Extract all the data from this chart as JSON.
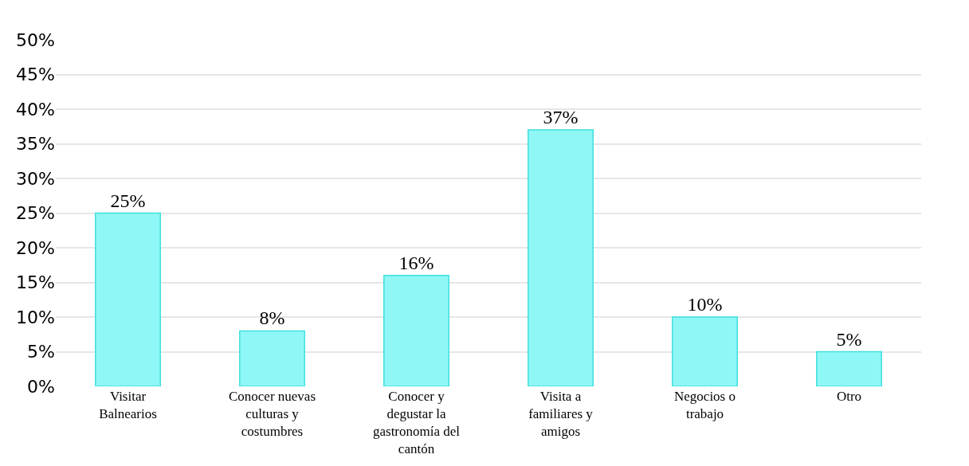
{
  "chart_data": {
    "type": "bar",
    "categories": [
      "Visitar Balnearios",
      "Conocer nuevas culturas y costumbres",
      "Conocer y degustar la gastronomía del cantón",
      "Visita a familiares y amigos",
      "Negocios o trabajo",
      "Otro"
    ],
    "values": [
      25,
      8,
      16,
      37,
      10,
      5
    ],
    "value_labels": [
      "25%",
      "8%",
      "16%",
      "37%",
      "10%",
      "5%"
    ],
    "color": "#8ff7f5",
    "ylim": [
      0,
      50
    ],
    "yticks": [
      {
        "value": 0,
        "label": "0%"
      },
      {
        "value": 5,
        "label": "5%"
      },
      {
        "value": 10,
        "label": "10%"
      },
      {
        "value": 15,
        "label": "15%"
      },
      {
        "value": 20,
        "label": "20%"
      },
      {
        "value": 25,
        "label": "25%"
      },
      {
        "value": 30,
        "label": "30%"
      },
      {
        "value": 35,
        "label": "35%"
      },
      {
        "value": 40,
        "label": "40%"
      },
      {
        "value": 45,
        "label": "45%"
      },
      {
        "value": 50,
        "label": "50%"
      }
    ],
    "grid": "y"
  }
}
